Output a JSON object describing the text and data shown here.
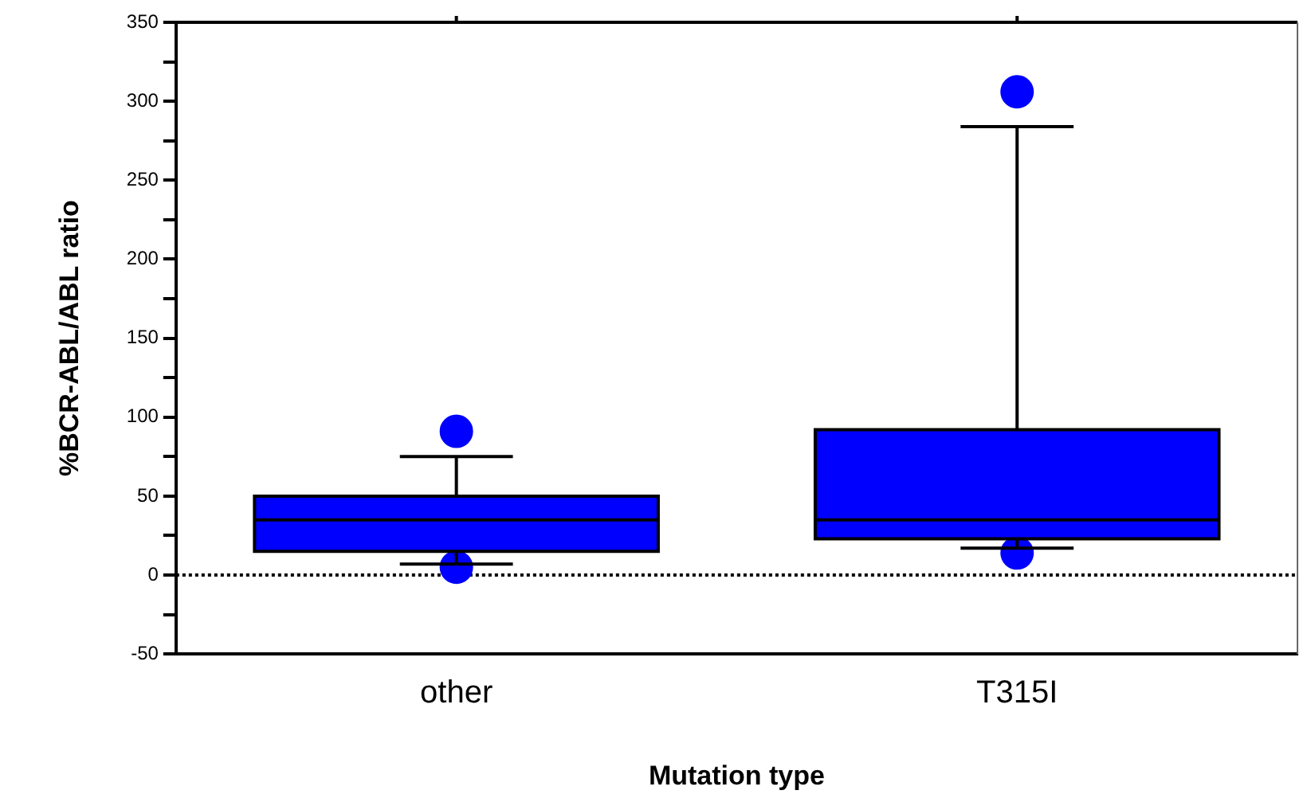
{
  "chart_data": {
    "type": "box",
    "xlabel": "Mutation type",
    "ylabel": "%BCR-ABL/ABL ratio",
    "categories": [
      "other",
      "T315I"
    ],
    "boxes": [
      {
        "low": 7,
        "q1": 15,
        "median": 35,
        "q3": 50,
        "high": 75,
        "outliers": [
          91,
          5
        ]
      },
      {
        "low": 17,
        "q1": 23,
        "median": 35,
        "q3": 92,
        "high": 284,
        "outliers": [
          306,
          14
        ]
      }
    ],
    "color": "#0000ff",
    "ylim": [
      -50,
      350
    ],
    "yticks": [
      -50,
      0,
      50,
      100,
      150,
      200,
      250,
      300,
      350
    ],
    "ref_lines": [
      {
        "axis": "y",
        "value": 0,
        "line_style": "dotted",
        "color": "#000000"
      }
    ],
    "grid": false,
    "legend": false
  }
}
